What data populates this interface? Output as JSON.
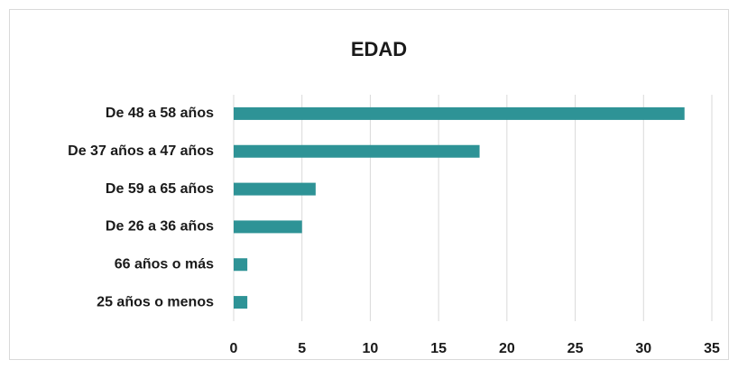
{
  "chart_data": {
    "type": "bar",
    "orientation": "horizontal",
    "title": "EDAD",
    "categories": [
      "De 48 a 58 años",
      "De 37 años a 47 años",
      "De 59 a 65 años",
      "De 26 a 36 años",
      "66 años o más",
      "25 años o menos"
    ],
    "values": [
      33,
      18,
      6,
      5,
      1,
      1
    ],
    "color": "#2e9396",
    "xlim": [
      0,
      35
    ],
    "xticks": [
      0,
      5,
      10,
      15,
      20,
      25,
      30,
      35
    ],
    "grid": true
  }
}
